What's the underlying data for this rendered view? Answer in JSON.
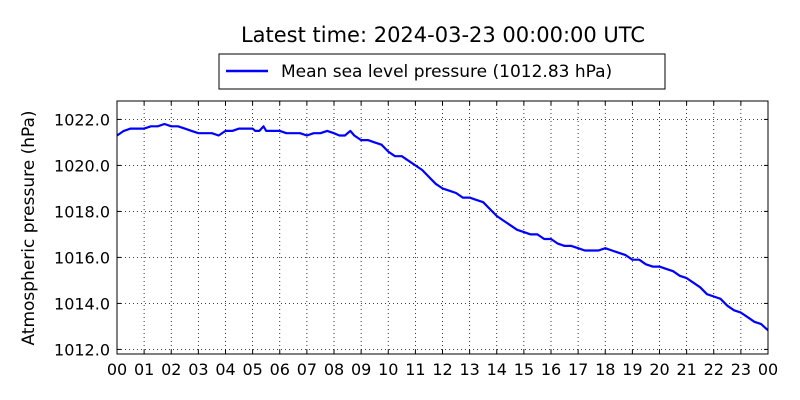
{
  "chart_data": {
    "type": "line",
    "title": "Latest time: 2024-03-23 00:00:00 UTC",
    "xlabel": "",
    "ylabel": "Atmospheric pressure (hPa)",
    "x_tick_labels": [
      "00",
      "01",
      "02",
      "03",
      "04",
      "05",
      "06",
      "07",
      "08",
      "09",
      "10",
      "11",
      "12",
      "13",
      "14",
      "15",
      "16",
      "17",
      "18",
      "19",
      "20",
      "21",
      "22",
      "23",
      "00"
    ],
    "y_tick_labels": [
      "1012.0",
      "1014.0",
      "1016.0",
      "1018.0",
      "1020.0",
      "1022.0"
    ],
    "y_ticks": [
      1012,
      1014,
      1016,
      1018,
      1020,
      1022
    ],
    "xlim": [
      0,
      24
    ],
    "ylim": [
      1011.8,
      1022.8
    ],
    "grid": true,
    "legend_position": "top-center",
    "series": [
      {
        "name": "Mean sea level pressure (1012.83 hPa)",
        "color": "#0000ff",
        "x": [
          0.0,
          0.25,
          0.5,
          0.75,
          1.0,
          1.25,
          1.5,
          1.75,
          2.0,
          2.25,
          2.5,
          2.75,
          3.0,
          3.25,
          3.5,
          3.75,
          4.0,
          4.25,
          4.5,
          4.75,
          5.0,
          5.1,
          5.25,
          5.4,
          5.5,
          5.75,
          6.0,
          6.25,
          6.5,
          6.75,
          7.0,
          7.25,
          7.5,
          7.75,
          8.0,
          8.2,
          8.4,
          8.6,
          8.75,
          9.0,
          9.25,
          9.5,
          9.75,
          10.0,
          10.25,
          10.5,
          10.75,
          11.0,
          11.25,
          11.5,
          11.75,
          12.0,
          12.25,
          12.5,
          12.75,
          13.0,
          13.25,
          13.5,
          13.75,
          14.0,
          14.25,
          14.5,
          14.75,
          15.0,
          15.25,
          15.5,
          15.75,
          16.0,
          16.25,
          16.5,
          16.75,
          17.0,
          17.25,
          17.5,
          17.75,
          18.0,
          18.25,
          18.5,
          18.75,
          19.0,
          19.25,
          19.5,
          19.75,
          20.0,
          20.25,
          20.5,
          20.75,
          21.0,
          21.25,
          21.5,
          21.75,
          22.0,
          22.25,
          22.5,
          22.75,
          23.0,
          23.25,
          23.5,
          23.75,
          24.0
        ],
        "y": [
          1021.3,
          1021.5,
          1021.6,
          1021.6,
          1021.6,
          1021.7,
          1021.7,
          1021.8,
          1021.7,
          1021.7,
          1021.6,
          1021.5,
          1021.4,
          1021.4,
          1021.4,
          1021.3,
          1021.5,
          1021.5,
          1021.6,
          1021.6,
          1021.6,
          1021.5,
          1021.5,
          1021.7,
          1021.5,
          1021.5,
          1021.5,
          1021.4,
          1021.4,
          1021.4,
          1021.3,
          1021.4,
          1021.4,
          1021.5,
          1021.4,
          1021.3,
          1021.3,
          1021.5,
          1021.3,
          1021.1,
          1021.1,
          1021.0,
          1020.9,
          1020.6,
          1020.4,
          1020.4,
          1020.2,
          1020.0,
          1019.8,
          1019.5,
          1019.2,
          1019.0,
          1018.9,
          1018.8,
          1018.6,
          1018.6,
          1018.5,
          1018.4,
          1018.1,
          1017.8,
          1017.6,
          1017.4,
          1017.2,
          1017.1,
          1017.0,
          1017.0,
          1016.8,
          1016.8,
          1016.6,
          1016.5,
          1016.5,
          1016.4,
          1016.3,
          1016.3,
          1016.3,
          1016.4,
          1016.3,
          1016.2,
          1016.1,
          1015.9,
          1015.9,
          1015.7,
          1015.6,
          1015.6,
          1015.5,
          1015.4,
          1015.2,
          1015.1,
          1014.9,
          1014.7,
          1014.4,
          1014.3,
          1014.2,
          1013.9,
          1013.7,
          1013.6,
          1013.4,
          1013.2,
          1013.1,
          1012.83
        ]
      }
    ]
  }
}
